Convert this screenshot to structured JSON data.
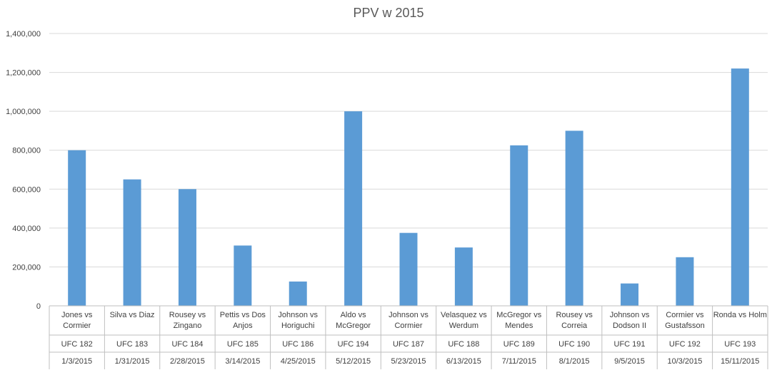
{
  "chart_data": {
    "type": "bar",
    "title": "PPV w 2015",
    "categories": [
      {
        "lines": [
          "Jones vs",
          "Cormier"
        ],
        "event": "UFC 182",
        "date": "1/3/2015"
      },
      {
        "lines": [
          "Silva vs Diaz"
        ],
        "event": "UFC 183",
        "date": "1/31/2015"
      },
      {
        "lines": [
          "Rousey vs",
          "Zingano"
        ],
        "event": "UFC 184",
        "date": "2/28/2015"
      },
      {
        "lines": [
          "Pettis vs Dos",
          "Anjos"
        ],
        "event": "UFC 185",
        "date": "3/14/2015"
      },
      {
        "lines": [
          "Johnson vs",
          "Horiguchi"
        ],
        "event": "UFC 186",
        "date": "4/25/2015"
      },
      {
        "lines": [
          "Aldo vs",
          "McGregor"
        ],
        "event": "UFC 194",
        "date": "5/12/2015"
      },
      {
        "lines": [
          "Johnson vs",
          "Cormier"
        ],
        "event": "UFC 187",
        "date": "5/23/2015"
      },
      {
        "lines": [
          "Velasquez vs",
          "Werdum"
        ],
        "event": "UFC 188",
        "date": "6/13/2015"
      },
      {
        "lines": [
          "McGregor vs",
          "Mendes"
        ],
        "event": "UFC 189",
        "date": "7/11/2015"
      },
      {
        "lines": [
          "Rousey vs",
          "Correia"
        ],
        "event": "UFC 190",
        "date": "8/1/2015"
      },
      {
        "lines": [
          "Johnson vs",
          "Dodson II"
        ],
        "event": "UFC 191",
        "date": "9/5/2015"
      },
      {
        "lines": [
          "Cormier vs",
          "Gustafsson"
        ],
        "event": "UFC 192",
        "date": "10/3/2015"
      },
      {
        "lines": [
          "Ronda vs Holm"
        ],
        "event": "UFC 193",
        "date": "15/11/2015"
      }
    ],
    "values": [
      800000,
      650000,
      600000,
      310000,
      125000,
      1000000,
      375000,
      300000,
      825000,
      900000,
      115000,
      250000,
      1220000
    ],
    "ylim": [
      0,
      1400000
    ],
    "yticks": [
      0,
      200000,
      400000,
      600000,
      800000,
      1000000,
      1200000,
      1400000
    ],
    "ytick_labels": [
      "0",
      "200,000",
      "400,000",
      "600,000",
      "800,000",
      "1,000,000",
      "1,200,000",
      "1,400,000"
    ],
    "grid": true,
    "legend": "none",
    "colors": {
      "bar": "#5b9bd5",
      "grid": "#d9d9d9",
      "axis": "#bfbfbf",
      "text": "#404040",
      "title": "#595959"
    }
  }
}
